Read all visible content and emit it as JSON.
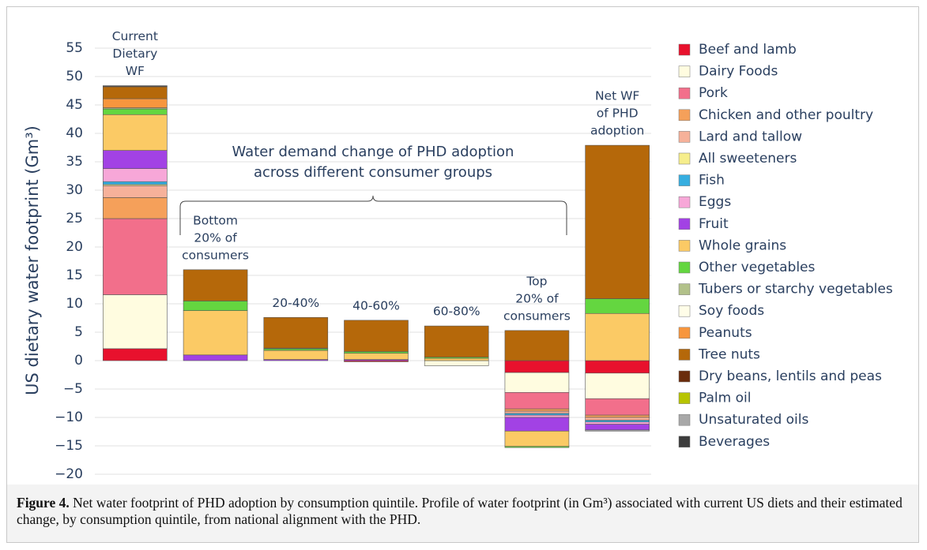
{
  "chart_data": {
    "type": "stacked_bar",
    "ylabel": "US dietary water footprint (Gm³)",
    "annotation": [
      "Water demand change of PHD adoption",
      "across different consumer groups"
    ],
    "caption": {
      "label": "Figure 4.",
      "text": "Net water footprint of PHD adoption by consumption quintile. Profile of water footprint (in Gm³) associated with current US diets and their estimated change, by consumption quintile, from national alignment with the PHD."
    },
    "categories": [
      [
        "Current",
        "Dietary",
        "WF"
      ],
      [
        "Bottom",
        "20% of",
        "consumers"
      ],
      [
        "20-40%"
      ],
      [
        "40-60%"
      ],
      [
        "60-80%"
      ],
      [
        "Top",
        "20% of",
        "consumers"
      ],
      [
        "Net WF",
        "of PHD",
        "adoption"
      ]
    ],
    "ylim": [
      -20,
      55
    ],
    "yticks": [
      {
        "value": -20,
        "label": "−20"
      },
      {
        "value": -15,
        "label": "−15"
      },
      {
        "value": -10,
        "label": "−10"
      },
      {
        "value": -5,
        "label": "−5"
      },
      0,
      5,
      10,
      15,
      20,
      25,
      30,
      35,
      40,
      45,
      50,
      55
    ],
    "grid": true,
    "series": [
      {
        "name": "Beef and lamb",
        "color": "#e8112d",
        "values": [
          2.1,
          0,
          0,
          -0.2,
          0,
          -2.1,
          -2.2
        ]
      },
      {
        "name": "Dairy Foods",
        "color": "#fffce0",
        "values": [
          9.5,
          0,
          0,
          0,
          -0.9,
          -3.5,
          -4.5
        ]
      },
      {
        "name": "Pork",
        "color": "#f26f8b",
        "values": [
          13.4,
          0,
          0,
          0,
          0,
          -2.9,
          -2.9
        ]
      },
      {
        "name": "Chicken and other poultry",
        "color": "#f5a05a",
        "values": [
          3.7,
          0,
          0,
          0,
          0,
          -0.4,
          -0.4
        ]
      },
      {
        "name": "Lard and tallow",
        "color": "#f6b19a",
        "values": [
          2.1,
          0,
          0,
          0,
          0,
          -0.4,
          -0.5
        ]
      },
      {
        "name": "All sweeteners",
        "color": "#f6ee8c",
        "values": [
          0.2,
          0,
          0,
          0,
          0,
          0,
          0
        ]
      },
      {
        "name": "Fish",
        "color": "#36aee0",
        "values": [
          0.5,
          0,
          0,
          0,
          0,
          -0.3,
          -0.3
        ]
      },
      {
        "name": "Eggs",
        "color": "#f7a7d8",
        "values": [
          2.3,
          0,
          0,
          0,
          0,
          -0.4,
          -0.4
        ]
      },
      {
        "name": "Fruit",
        "color": "#a242e4",
        "values": [
          3.2,
          1.0,
          0.2,
          0.2,
          0,
          -2.4,
          -1.0
        ]
      },
      {
        "name": "Whole grains",
        "color": "#fbca65",
        "values": [
          6.3,
          7.8,
          1.6,
          1.1,
          0.4,
          -2.7,
          8.3
        ]
      },
      {
        "name": "Other vegetables",
        "color": "#64d640",
        "values": [
          1.0,
          1.7,
          0.3,
          0.3,
          0.2,
          -0.2,
          2.6
        ]
      },
      {
        "name": "Tubers or starchy vegetables",
        "color": "#b2c18a",
        "values": [
          0.2,
          0,
          0.1,
          0,
          0,
          0,
          0
        ]
      },
      {
        "name": "Soy foods",
        "color": "#fffde8",
        "values": [
          0,
          0,
          0,
          0,
          0,
          0,
          0
        ]
      },
      {
        "name": "Peanuts",
        "color": "#f7963e",
        "values": [
          1.6,
          0,
          0,
          0,
          0,
          0,
          0
        ]
      },
      {
        "name": "Tree nuts",
        "color": "#b5680a",
        "values": [
          2.1,
          5.5,
          5.4,
          5.5,
          5.5,
          5.3,
          27.0
        ]
      },
      {
        "name": "Dry beans, lentils and peas",
        "color": "#6a2c0c",
        "values": [
          0.1,
          0,
          0,
          0,
          0,
          0,
          0
        ]
      },
      {
        "name": "Palm oil",
        "color": "#b7c400",
        "values": [
          0,
          0,
          0,
          0,
          0,
          0,
          0
        ]
      },
      {
        "name": "Unsaturated oils",
        "color": "#a8a8a8",
        "values": [
          0.1,
          0,
          0,
          0,
          0,
          0,
          -0.2
        ]
      },
      {
        "name": "Beverages",
        "color": "#3c3c3c",
        "values": [
          0,
          0,
          0,
          0,
          0,
          0,
          0
        ]
      }
    ]
  }
}
